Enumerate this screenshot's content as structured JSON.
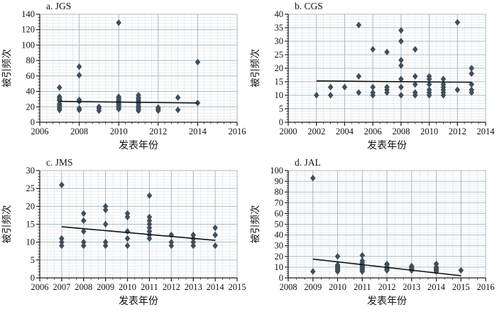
{
  "figure_name": "journal-citation-scatter-plots",
  "colors": {
    "background": "#ffffff",
    "marker": "#3f4e5a",
    "trend_line": "#111111",
    "grid_minor": "#dfe7ea",
    "grid_major": "#a7bac3",
    "axis": "#1a1a1a",
    "text": "#111111"
  },
  "chart_data": [
    {
      "type": "scatter",
      "title": "a. JGS",
      "xlabel": "发表年份",
      "ylabel": "被引频次",
      "xlim": [
        2006,
        2016
      ],
      "xtick_step": 2,
      "x_minor_div": 6,
      "ylim": [
        0,
        140
      ],
      "ytick_step": 20,
      "y_minor_div": 5,
      "legend": null,
      "grid": true,
      "points": [
        [
          2007,
          45
        ],
        [
          2007,
          33
        ],
        [
          2007,
          31
        ],
        [
          2007,
          29
        ],
        [
          2007,
          28
        ],
        [
          2007,
          24
        ],
        [
          2007,
          22
        ],
        [
          2007,
          20
        ],
        [
          2007,
          18
        ],
        [
          2007,
          16
        ],
        [
          2008,
          72
        ],
        [
          2008,
          61
        ],
        [
          2008,
          29
        ],
        [
          2008,
          27
        ],
        [
          2008,
          18
        ],
        [
          2008,
          16
        ],
        [
          2009,
          20
        ],
        [
          2009,
          18
        ],
        [
          2009,
          15
        ],
        [
          2010,
          129
        ],
        [
          2010,
          33
        ],
        [
          2010,
          31
        ],
        [
          2010,
          29
        ],
        [
          2010,
          27
        ],
        [
          2010,
          25
        ],
        [
          2010,
          23
        ],
        [
          2010,
          21
        ],
        [
          2010,
          19
        ],
        [
          2010,
          17
        ],
        [
          2011,
          35
        ],
        [
          2011,
          32
        ],
        [
          2011,
          30
        ],
        [
          2011,
          28
        ],
        [
          2011,
          26
        ],
        [
          2011,
          24
        ],
        [
          2011,
          21
        ],
        [
          2011,
          19
        ],
        [
          2011,
          17
        ],
        [
          2011,
          15
        ],
        [
          2012,
          19
        ],
        [
          2012,
          17
        ],
        [
          2012,
          15
        ],
        [
          2013,
          32
        ],
        [
          2013,
          16
        ],
        [
          2014,
          78
        ],
        [
          2014,
          25
        ]
      ],
      "trend": {
        "x1": 2007,
        "y1": 27,
        "x2": 2014,
        "y2": 25
      }
    },
    {
      "type": "scatter",
      "title": "b. CGS",
      "xlabel": "发表年份",
      "ylabel": "被引频次",
      "xlim": [
        2000,
        2014
      ],
      "xtick_step": 2,
      "x_minor_div": 4,
      "ylim": [
        0,
        40
      ],
      "ytick_step": 5,
      "y_minor_div": 5,
      "legend": null,
      "grid": true,
      "points": [
        [
          2002,
          10
        ],
        [
          2003,
          13
        ],
        [
          2003,
          10
        ],
        [
          2004,
          13
        ],
        [
          2005,
          36
        ],
        [
          2005,
          17
        ],
        [
          2005,
          11
        ],
        [
          2006,
          27
        ],
        [
          2006,
          13
        ],
        [
          2006,
          11
        ],
        [
          2006,
          10
        ],
        [
          2007,
          26
        ],
        [
          2007,
          13
        ],
        [
          2007,
          12
        ],
        [
          2007,
          11
        ],
        [
          2008,
          34
        ],
        [
          2008,
          30
        ],
        [
          2008,
          23
        ],
        [
          2008,
          21
        ],
        [
          2008,
          16
        ],
        [
          2008,
          13
        ],
        [
          2008,
          10
        ],
        [
          2009,
          27
        ],
        [
          2009,
          17
        ],
        [
          2009,
          14
        ],
        [
          2009,
          11
        ],
        [
          2009,
          10
        ],
        [
          2010,
          17
        ],
        [
          2010,
          16
        ],
        [
          2010,
          14
        ],
        [
          2010,
          12
        ],
        [
          2010,
          11
        ],
        [
          2010,
          10
        ],
        [
          2011,
          16
        ],
        [
          2011,
          14
        ],
        [
          2011,
          13
        ],
        [
          2011,
          12
        ],
        [
          2011,
          11
        ],
        [
          2011,
          10
        ],
        [
          2012,
          37
        ],
        [
          2012,
          12
        ],
        [
          2013,
          20
        ],
        [
          2013,
          18
        ],
        [
          2013,
          14
        ],
        [
          2013,
          12
        ],
        [
          2013,
          11
        ]
      ],
      "trend": {
        "x1": 2002,
        "y1": 15.3,
        "x2": 2013,
        "y2": 14.8
      }
    },
    {
      "type": "scatter",
      "title": "c. JMS",
      "xlabel": "发表年份",
      "ylabel": "被引频次",
      "xlim": [
        2006,
        2015
      ],
      "xtick_step": 1,
      "x_minor_div": 3,
      "ylim": [
        0,
        30
      ],
      "ytick_step": 5,
      "y_minor_div": 6,
      "legend": null,
      "grid": true,
      "points": [
        [
          2007,
          26
        ],
        [
          2007,
          11
        ],
        [
          2007,
          10
        ],
        [
          2007,
          9
        ],
        [
          2008,
          18
        ],
        [
          2008,
          16
        ],
        [
          2008,
          13
        ],
        [
          2008,
          10
        ],
        [
          2008,
          9
        ],
        [
          2009,
          20
        ],
        [
          2009,
          19
        ],
        [
          2009,
          15
        ],
        [
          2009,
          10
        ],
        [
          2009,
          9
        ],
        [
          2010,
          18
        ],
        [
          2010,
          17
        ],
        [
          2010,
          13
        ],
        [
          2010,
          11
        ],
        [
          2010,
          9
        ],
        [
          2011,
          23
        ],
        [
          2011,
          17
        ],
        [
          2011,
          16
        ],
        [
          2011,
          15
        ],
        [
          2011,
          14
        ],
        [
          2011,
          13
        ],
        [
          2011,
          12
        ],
        [
          2011,
          11
        ],
        [
          2012,
          12
        ],
        [
          2012,
          10
        ],
        [
          2012,
          9
        ],
        [
          2013,
          12
        ],
        [
          2013,
          11
        ],
        [
          2013,
          10
        ],
        [
          2013,
          9
        ],
        [
          2014,
          14
        ],
        [
          2014,
          12
        ],
        [
          2014,
          9
        ]
      ],
      "trend": {
        "x1": 2007,
        "y1": 14.3,
        "x2": 2014,
        "y2": 10.5
      }
    },
    {
      "type": "scatter",
      "title": "d. JAL",
      "xlabel": "发表年份",
      "ylabel": "被引频次",
      "xlim": [
        2008,
        2016
      ],
      "xtick_step": 1,
      "x_minor_div": 3,
      "ylim": [
        0,
        100
      ],
      "ytick_step": 10,
      "y_minor_div": 5,
      "legend": null,
      "grid": true,
      "points": [
        [
          2009,
          93
        ],
        [
          2009,
          6
        ],
        [
          2010,
          20
        ],
        [
          2010,
          12
        ],
        [
          2010,
          11
        ],
        [
          2010,
          10
        ],
        [
          2010,
          9
        ],
        [
          2010,
          8
        ],
        [
          2010,
          7
        ],
        [
          2010,
          6
        ],
        [
          2011,
          21
        ],
        [
          2011,
          16
        ],
        [
          2011,
          14
        ],
        [
          2011,
          12
        ],
        [
          2011,
          11
        ],
        [
          2011,
          10
        ],
        [
          2011,
          9
        ],
        [
          2011,
          8
        ],
        [
          2011,
          7
        ],
        [
          2011,
          6
        ],
        [
          2012,
          13
        ],
        [
          2012,
          12
        ],
        [
          2012,
          10
        ],
        [
          2012,
          9
        ],
        [
          2012,
          8
        ],
        [
          2012,
          7
        ],
        [
          2013,
          11
        ],
        [
          2013,
          10
        ],
        [
          2013,
          9
        ],
        [
          2013,
          8
        ],
        [
          2013,
          7
        ],
        [
          2014,
          13
        ],
        [
          2014,
          10
        ],
        [
          2014,
          9
        ],
        [
          2014,
          8
        ],
        [
          2014,
          7
        ],
        [
          2014,
          6
        ],
        [
          2015,
          7
        ]
      ],
      "trend": {
        "x1": 2009,
        "y1": 17.5,
        "x2": 2015,
        "y2": 2
      }
    }
  ]
}
